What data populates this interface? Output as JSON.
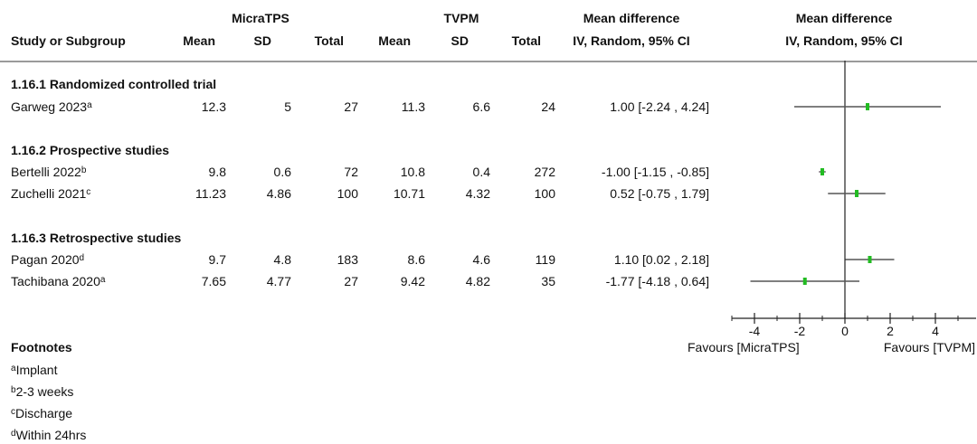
{
  "header": {
    "group_micratps": "MicraTPS",
    "group_tvpm": "TVPM",
    "mean_difference_top": "Mean difference",
    "mean_difference_plot_top": "Mean difference",
    "study_or_subgroup": "Study or Subgroup",
    "mean": "Mean",
    "sd": "SD",
    "total": "Total",
    "method": "IV, Random, 95% CI",
    "method_plot": "IV, Random, 95% CI"
  },
  "subgroups": [
    {
      "title": "1.16.1 Randomized controlled trial",
      "studies": [
        {
          "name": "Garweg 2023",
          "sup": "a",
          "m1": "12.3",
          "sd1": "5",
          "n1": "27",
          "m2": "11.3",
          "sd2": "6.6",
          "n2": "24",
          "ci": "1.00 [-2.24 , 4.24]"
        }
      ]
    },
    {
      "title": "1.16.2 Prospective studies",
      "studies": [
        {
          "name": "Bertelli 2022",
          "sup": "b",
          "m1": "9.8",
          "sd1": "0.6",
          "n1": "72",
          "m2": "10.8",
          "sd2": "0.4",
          "n2": "272",
          "ci": "-1.00 [-1.15 , -0.85]"
        },
        {
          "name": "Zuchelli 2021",
          "sup": "c",
          "m1": "11.23",
          "sd1": "4.86",
          "n1": "100",
          "m2": "10.71",
          "sd2": "4.32",
          "n2": "100",
          "ci": "0.52 [-0.75 , 1.79]"
        }
      ]
    },
    {
      "title": "1.16.3 Retrospective studies",
      "studies": [
        {
          "name": "Pagan 2020",
          "sup": "d",
          "m1": "9.7",
          "sd1": "4.8",
          "n1": "183",
          "m2": "8.6",
          "sd2": "4.6",
          "n2": "119",
          "ci": "1.10 [0.02 , 2.18]"
        },
        {
          "name": "Tachibana 2020",
          "sup": "a",
          "m1": "7.65",
          "sd1": "4.77",
          "n1": "27",
          "m2": "9.42",
          "sd2": "4.82",
          "n2": "35",
          "ci": "-1.77 [-4.18 , 0.64]"
        }
      ]
    }
  ],
  "axis": {
    "favours_left": "Favours [MicraTPS]",
    "favours_right": "Favours [TVPM]"
  },
  "footnotes": {
    "title": "Footnotes",
    "items": [
      {
        "sup": "a",
        "text": "Implant"
      },
      {
        "sup": "b",
        "text": "2-3 weeks"
      },
      {
        "sup": "c",
        "text": "Discharge"
      },
      {
        "sup": "d",
        "text": "Within 24hrs"
      }
    ]
  },
  "colors": {
    "marker": "#22bb22",
    "line": "#555555",
    "axis": "#222222"
  },
  "chart_data": {
    "type": "forest",
    "xlim": [
      -4,
      4
    ],
    "ticks": [
      -4,
      -2,
      0,
      2,
      4
    ],
    "tick_labels": [
      "-4",
      "-2",
      "0",
      "2",
      "4"
    ],
    "studies": [
      {
        "name": "Garweg 2023",
        "estimate": 1.0,
        "lower": -2.24,
        "upper": 4.24
      },
      {
        "name": "Bertelli 2022",
        "estimate": -1.0,
        "lower": -1.15,
        "upper": -0.85
      },
      {
        "name": "Zuchelli 2021",
        "estimate": 0.52,
        "lower": -0.75,
        "upper": 1.79
      },
      {
        "name": "Pagan 2020",
        "estimate": 1.1,
        "lower": 0.02,
        "upper": 2.18
      },
      {
        "name": "Tachibana 2020",
        "estimate": -1.77,
        "lower": -4.18,
        "upper": 0.64
      }
    ]
  }
}
